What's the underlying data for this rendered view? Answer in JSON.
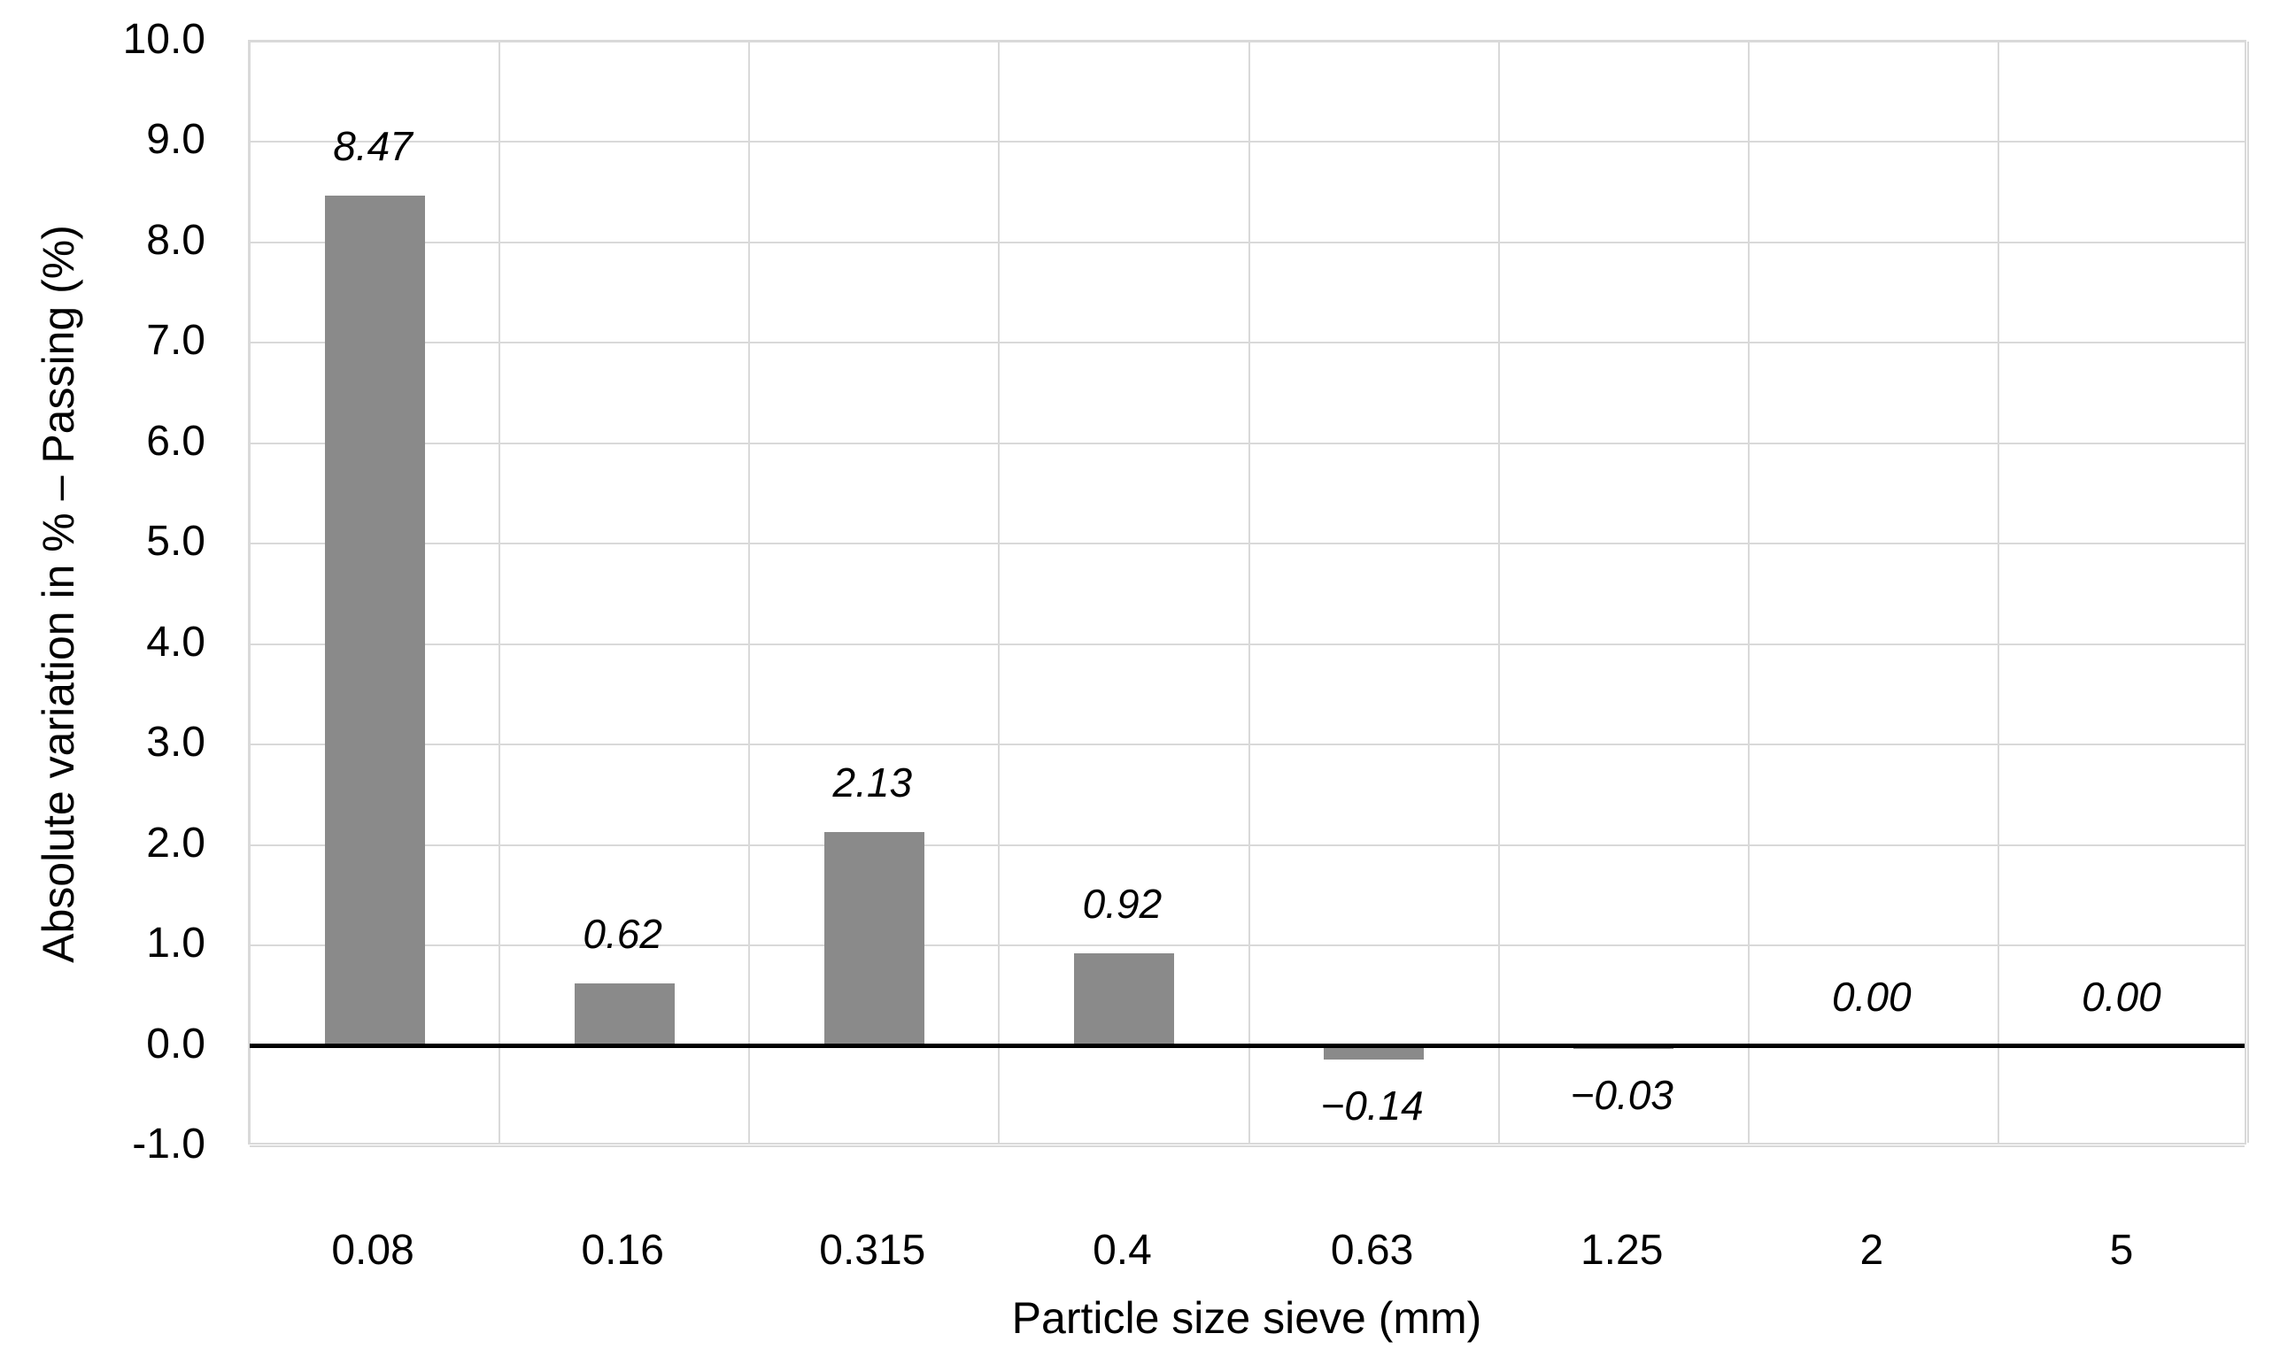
{
  "chart_data": {
    "type": "bar",
    "title": "",
    "xlabel": "Particle size sieve (mm)",
    "ylabel": "Absolute variation in % – Passing (%)",
    "categories": [
      "0.08",
      "0.16",
      "0.315",
      "0.4",
      "0.63",
      "1.25",
      "2",
      "5"
    ],
    "values": [
      8.47,
      0.62,
      2.13,
      0.92,
      -0.14,
      -0.03,
      0.0,
      0.0
    ],
    "data_labels": [
      "8.47",
      "0.62",
      "2.13",
      "0.92",
      "−0.14",
      "−0.03",
      "0.00",
      "0.00"
    ],
    "ylim": [
      -1.0,
      10.0
    ],
    "ytick_step": 1.0,
    "ytick_labels": [
      "10.0",
      "9.0",
      "8.0",
      "7.0",
      "6.0",
      "5.0",
      "4.0",
      "3.0",
      "2.0",
      "1.0",
      "0.0",
      "-1.0"
    ],
    "grid": true,
    "legend": false,
    "bar_color": "#8a8a8a",
    "gridline_color": "#d9d9d9",
    "zero_line_color": "#000000",
    "text_color": "#000000"
  }
}
